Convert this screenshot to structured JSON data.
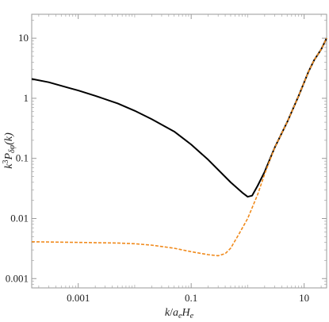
{
  "chart_data": {
    "type": "line",
    "xlabel_parts": {
      "k": "k",
      "sep": "/",
      "a": "a",
      "a_sub": "e",
      "H": "H",
      "H_sub": "e"
    },
    "ylabel_parts": {
      "pre": "k",
      "sup": "3",
      "P": "P",
      "sub": "δφ",
      "arg": "(k)"
    },
    "xscale": "log",
    "yscale": "log",
    "xlim": [
      0.00015,
      25
    ],
    "ylim": [
      0.0007,
      25
    ],
    "xticks": [
      {
        "value": 0.001,
        "label": "0.001"
      },
      {
        "value": 0.1,
        "label": "0.1"
      },
      {
        "value": 10,
        "label": "10"
      }
    ],
    "yticks": [
      {
        "value": 0.001,
        "label": "0.001"
      },
      {
        "value": 0.01,
        "label": "0.01"
      },
      {
        "value": 0.1,
        "label": "0.1"
      },
      {
        "value": 1,
        "label": "1"
      },
      {
        "value": 10,
        "label": "10"
      }
    ],
    "grid": false,
    "legend": "none",
    "series": [
      {
        "color": "#000000",
        "dash": "solid",
        "points": [
          [
            0.00015,
            2.1
          ],
          [
            0.0003,
            1.85
          ],
          [
            0.0007,
            1.48
          ],
          [
            0.001,
            1.35
          ],
          [
            0.002,
            1.1
          ],
          [
            0.005,
            0.82
          ],
          [
            0.01,
            0.62
          ],
          [
            0.02,
            0.45
          ],
          [
            0.05,
            0.28
          ],
          [
            0.08,
            0.2
          ],
          [
            0.1,
            0.17
          ],
          [
            0.2,
            0.095
          ],
          [
            0.5,
            0.04
          ],
          [
            0.8,
            0.027
          ],
          [
            1.0,
            0.023
          ],
          [
            1.2,
            0.024
          ],
          [
            1.5,
            0.035
          ],
          [
            2,
            0.06
          ],
          [
            3,
            0.15
          ],
          [
            5,
            0.4
          ],
          [
            8,
            1.1
          ],
          [
            12,
            2.8
          ],
          [
            15,
            4.3
          ],
          [
            20,
            6.5
          ],
          [
            25,
            10.0
          ]
        ]
      },
      {
        "color": "#f08a1c",
        "dash": "dashed",
        "points": [
          [
            0.00015,
            0.0041
          ],
          [
            0.001,
            0.004
          ],
          [
            0.005,
            0.0039
          ],
          [
            0.01,
            0.0038
          ],
          [
            0.02,
            0.0036
          ],
          [
            0.05,
            0.0032
          ],
          [
            0.1,
            0.0028
          ],
          [
            0.2,
            0.0025
          ],
          [
            0.3,
            0.0024
          ],
          [
            0.4,
            0.0026
          ],
          [
            0.5,
            0.0032
          ],
          [
            0.7,
            0.0055
          ],
          [
            1.0,
            0.01
          ],
          [
            1.5,
            0.025
          ],
          [
            2,
            0.055
          ],
          [
            3,
            0.15
          ],
          [
            5,
            0.4
          ],
          [
            8,
            1.1
          ],
          [
            12,
            2.8
          ],
          [
            15,
            4.3
          ],
          [
            20,
            6.5
          ],
          [
            25,
            10.0
          ]
        ]
      }
    ]
  }
}
